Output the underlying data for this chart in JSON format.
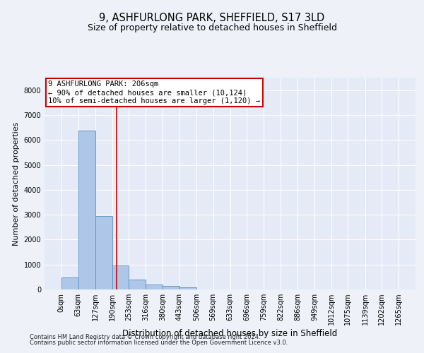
{
  "title": "9, ASHFURLONG PARK, SHEFFIELD, S17 3LD",
  "subtitle": "Size of property relative to detached houses in Sheffield",
  "xlabel": "Distribution of detached houses by size in Sheffield",
  "ylabel": "Number of detached properties",
  "footer_line1": "Contains HM Land Registry data © Crown copyright and database right 2024.",
  "footer_line2": "Contains public sector information licensed under the Open Government Licence v3.0.",
  "bar_edges": [
    0,
    63,
    127,
    190,
    253,
    316,
    380,
    443,
    506,
    569,
    633,
    696,
    759,
    822,
    886,
    949,
    1012,
    1075,
    1139,
    1202,
    1265
  ],
  "bar_heights": [
    480,
    6380,
    2950,
    970,
    400,
    200,
    150,
    75,
    0,
    0,
    0,
    0,
    0,
    0,
    0,
    0,
    0,
    0,
    0,
    0
  ],
  "bar_color": "#aec6e8",
  "bar_edge_color": "#5a8fc0",
  "property_size": 206,
  "annotation_line1": "9 ASHFURLONG PARK: 206sqm",
  "annotation_line2": "← 90% of detached houses are smaller (10,124)",
  "annotation_line3": "10% of semi-detached houses are larger (1,120) →",
  "vline_color": "#cc0000",
  "annotation_box_edge_color": "#cc0000",
  "ylim": [
    0,
    8500
  ],
  "yticks": [
    0,
    1000,
    2000,
    3000,
    4000,
    5000,
    6000,
    7000,
    8000
  ],
  "bg_color": "#eef2f8",
  "plot_bg_color": "#e4eaf6",
  "grid_color": "#ffffff",
  "tick_label_fontsize": 7,
  "title_fontsize": 10.5,
  "subtitle_fontsize": 9,
  "axis_label_fontsize": 8.5,
  "ylabel_fontsize": 8,
  "footer_fontsize": 6,
  "annotation_fontsize": 7.5
}
